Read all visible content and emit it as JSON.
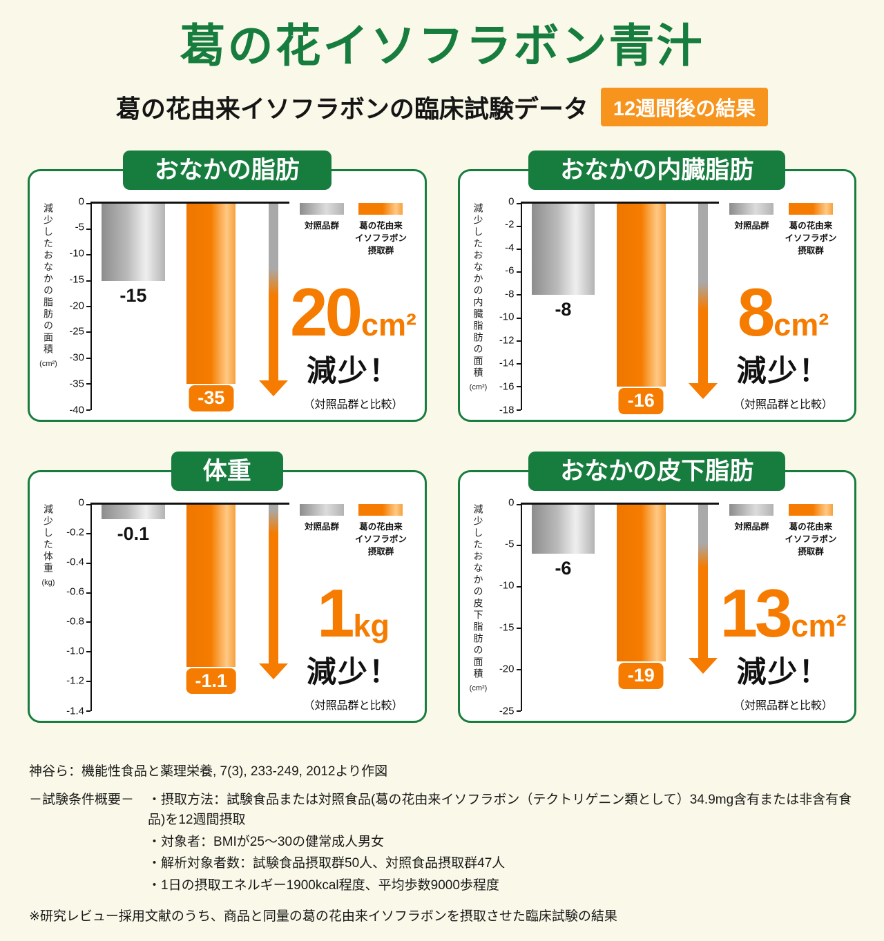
{
  "page": {
    "title": "葛の花イソフラボン青汁",
    "subtitle": "葛の花由来イソフラボンの臨床試験データ",
    "result_badge": "12週間後の結果"
  },
  "legend": {
    "control_label": "対照品群",
    "treatment_label": "葛の花由来\nイソフラボン\n摂取群"
  },
  "colors": {
    "green": "#177d3e",
    "orange": "#f57c00",
    "badge_orange": "#f7941e",
    "background": "#faf8e8",
    "control_gray": "#a9a9a9"
  },
  "chart_data": [
    {
      "type": "bar",
      "title": "おなかの脂肪",
      "ylabel": "減少したおなかの脂肪の面積",
      "y_unit": "(cm²)",
      "ylim": [
        0,
        -40
      ],
      "yticks": [
        "0",
        "-5",
        "-10",
        "-15",
        "-20",
        "-25",
        "-30",
        "-35",
        "-40"
      ],
      "series": [
        {
          "name": "対照品群",
          "value": -15,
          "label": "-15"
        },
        {
          "name": "葛の花由来イソフラボン摂取群",
          "value": -35,
          "label": "-35"
        }
      ],
      "reduction": {
        "number": "20",
        "unit": "cm²",
        "text": "減少！",
        "note": "（対照品群と比較）"
      }
    },
    {
      "type": "bar",
      "title": "おなかの内臓脂肪",
      "ylabel": "減少したおなかの内臓脂肪の面積",
      "y_unit": "(cm²)",
      "ylim": [
        0,
        -18
      ],
      "yticks": [
        "0",
        "-2",
        "-4",
        "-6",
        "-8",
        "-10",
        "-12",
        "-14",
        "-16",
        "-18"
      ],
      "series": [
        {
          "name": "対照品群",
          "value": -8,
          "label": "-8"
        },
        {
          "name": "葛の花由来イソフラボン摂取群",
          "value": -16,
          "label": "-16"
        }
      ],
      "reduction": {
        "number": "8",
        "unit": "cm²",
        "text": "減少！",
        "note": "（対照品群と比較）"
      }
    },
    {
      "type": "bar",
      "title": "体重",
      "ylabel": "減少した体重",
      "y_unit": "(kg)",
      "ylim": [
        0,
        -1.4
      ],
      "yticks": [
        "0",
        "-0.2",
        "-0.4",
        "-0.6",
        "-0.8",
        "-1.0",
        "-1.2",
        "-1.4"
      ],
      "series": [
        {
          "name": "対照品群",
          "value": -0.1,
          "label": "-0.1"
        },
        {
          "name": "葛の花由来イソフラボン摂取群",
          "value": -1.1,
          "label": "-1.1"
        }
      ],
      "reduction": {
        "number": "1",
        "unit": "kg",
        "text": "減少！",
        "note": "（対照品群と比較）"
      }
    },
    {
      "type": "bar",
      "title": "おなかの皮下脂肪",
      "ylabel": "減少したおなかの皮下脂肪の面積",
      "y_unit": "(cm²)",
      "ylim": [
        0,
        -25
      ],
      "yticks": [
        "0",
        "-5",
        "-10",
        "-15",
        "-20",
        "-25"
      ],
      "series": [
        {
          "name": "対照品群",
          "value": -6,
          "label": "-6"
        },
        {
          "name": "葛の花由来イソフラボン摂取群",
          "value": -19,
          "label": "-19"
        }
      ],
      "reduction": {
        "number": "13",
        "unit": "cm²",
        "text": "減少！",
        "note": "（対照品群と比較）"
      }
    }
  ],
  "footer": {
    "source": "神谷ら：機能性食品と薬理栄養, 7(3), 233-249, 2012より作図",
    "conditions_title": "－試験条件概要－",
    "conditions": [
      "・摂取方法：試験食品または対照食品(葛の花由来イソフラボン（テクトリゲニン類として）34.9mg含有または非含有食品)を12週間摂取",
      "・対象者：BMIが25〜30の健常成人男女",
      "・解析対象者数：試験食品摂取群50人、対照食品摂取群47人",
      "・1日の摂取エネルギー1900kcal程度、平均歩数9000歩程度"
    ],
    "note": "※研究レビュー採用文献のうち、商品と同量の葛の花由来イソフラボンを摂取させた臨床試験の結果"
  }
}
